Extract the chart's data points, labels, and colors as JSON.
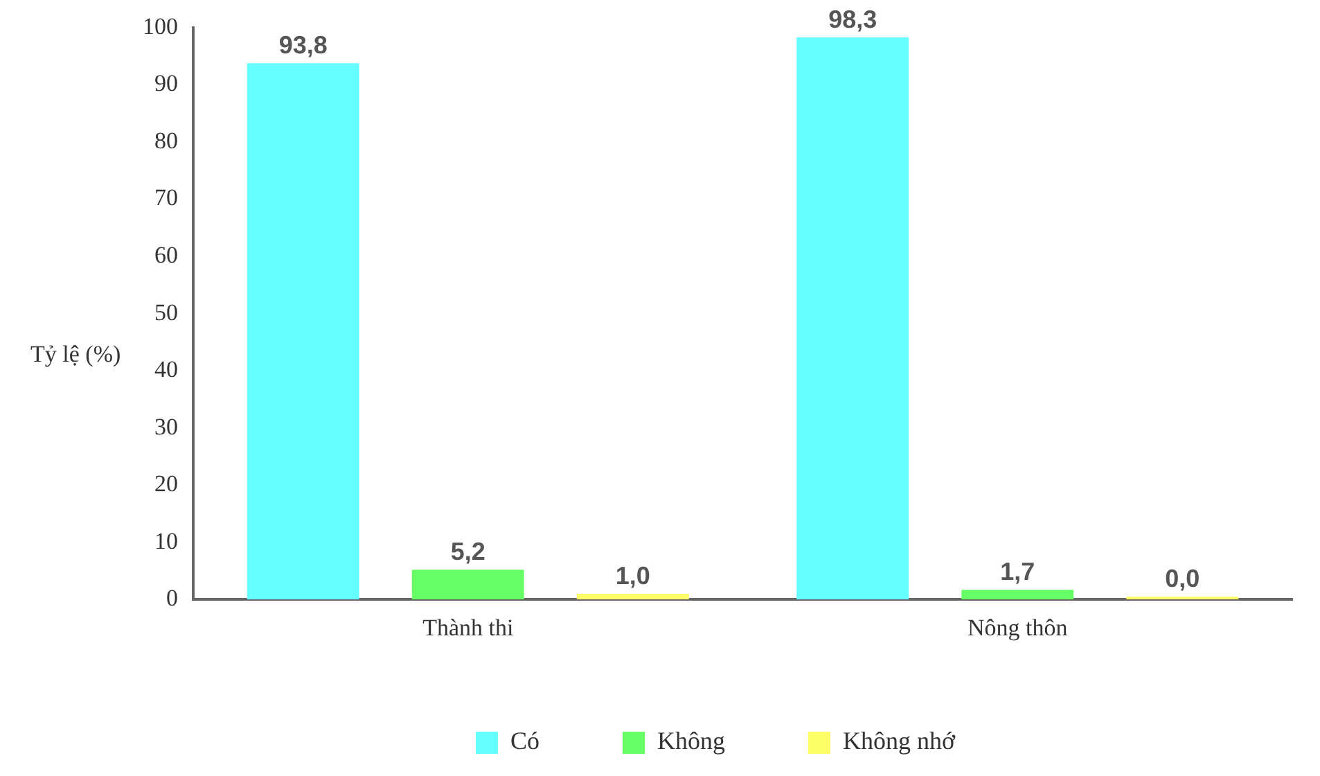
{
  "chart_data": {
    "type": "bar",
    "ylabel": "Tỷ lệ (%)",
    "categories": [
      "Thành thi",
      "Nông thôn"
    ],
    "series": [
      {
        "name": "Có",
        "color": "#66ffff",
        "values": [
          93.8,
          98.3
        ],
        "value_labels": [
          "93,8",
          "98,3"
        ]
      },
      {
        "name": "Không",
        "color": "#66ff66",
        "values": [
          5.2,
          1.7
        ],
        "value_labels": [
          "5,2",
          "1,7"
        ]
      },
      {
        "name": "Không nhớ",
        "color": "#ffff66",
        "values": [
          1.0,
          0.0
        ],
        "value_labels": [
          "1,0",
          "0,0"
        ]
      }
    ],
    "ylim": [
      0,
      100
    ],
    "yticks": [
      0,
      10,
      20,
      30,
      40,
      50,
      60,
      70,
      80,
      90,
      100
    ],
    "grid": false,
    "legend": "bottom"
  }
}
